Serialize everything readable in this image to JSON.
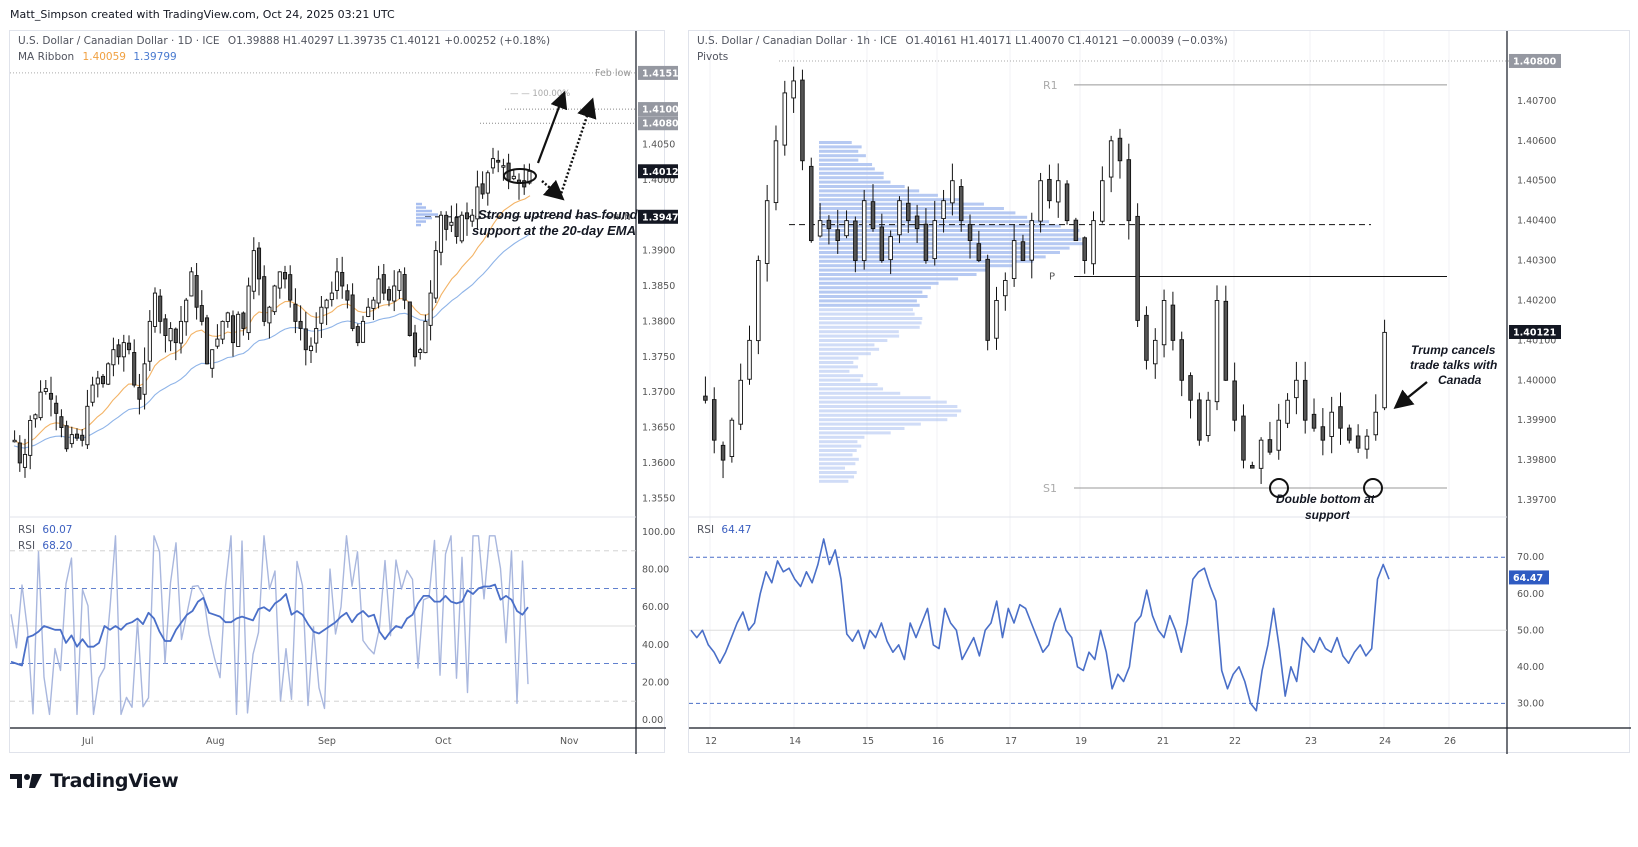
{
  "credit": "Matt_Simpson created with TradingView.com, Oct 24, 2025 03:21 UTC",
  "brand": "TradingView",
  "left_chart": {
    "title": "U.S. Dollar / Canadian Dollar · 1D · ICE",
    "ohlc": "O1.39888  H1.40297  L1.39735  C1.40121  +0.00252 (+0.18%)",
    "ma_ribbon_label": "MA Ribbon",
    "ma_fast": "1.40059",
    "ma_slow": "1.39799",
    "feb_low_label": "Feb low",
    "fib_label": "100.00%",
    "hvn_label": "HVN",
    "annotation_line1": "Strong uptrend has found",
    "annotation_line2": "support at the 20-day EMA",
    "price_ticks": [
      "1.40500",
      "1.40000",
      "1.39000",
      "1.38500",
      "1.38000",
      "1.37500",
      "1.37000",
      "1.36500",
      "1.36000",
      "1.35500"
    ],
    "price_tags": [
      {
        "label": "1.41511",
        "kind": "gray"
      },
      {
        "label": "1.41000",
        "kind": "gray"
      },
      {
        "label": "1.40800",
        "kind": "gray"
      },
      {
        "label": "1.40121",
        "kind": "black"
      },
      {
        "label": "1.39478",
        "kind": "black"
      }
    ],
    "x_ticks": [
      "Jul",
      "Aug",
      "Sep",
      "Oct",
      "Nov"
    ],
    "rsi_label": "RSI",
    "rsi_value_1": "60.07",
    "rsi_value_2": "68.20",
    "rsi_ticks": [
      "100.00",
      "80.00",
      "60.00",
      "40.00",
      "20.00",
      "0.00"
    ]
  },
  "right_chart": {
    "title": "U.S. Dollar / Canadian Dollar · 1h · ICE",
    "ohlc": "O1.40161  H1.40171  L1.40070  C1.40121  −0.00039 (−0.03%)",
    "pivots_label": "Pivots",
    "r1_label": "R1",
    "p_label": "P",
    "s1_label": "S1",
    "annotation_right_1": "Trump cancels",
    "annotation_right_2": "trade talks with",
    "annotation_right_3": "Canada",
    "annotation_bottom_1": "Double bottom at",
    "annotation_bottom_2": "support",
    "price_ticks": [
      "1.40700",
      "1.40600",
      "1.40500",
      "1.40400",
      "1.40300",
      "1.40200",
      "1.40100",
      "1.40000",
      "1.39900",
      "1.39800",
      "1.39700"
    ],
    "price_tags": [
      {
        "label": "1.40800",
        "kind": "gray"
      },
      {
        "label": "1.40121",
        "kind": "black"
      }
    ],
    "x_ticks": [
      "12",
      "14",
      "15",
      "16",
      "17",
      "19",
      "21",
      "22",
      "23",
      "24",
      "26"
    ],
    "rsi_label": "RSI",
    "rsi_value": "64.47",
    "rsi_ticks": [
      "70.00",
      "60.00",
      "50.00",
      "40.00",
      "30.00"
    ]
  },
  "colors": {
    "ma_fast": "#f0a040",
    "ma_slow": "#8fb4e8",
    "rsi_main": "#4a6fc8",
    "rsi_light": "#9aaad8",
    "volume_profile": "#a9bff0",
    "rsi_tag": "#2f5bc2"
  },
  "chart_data": [
    {
      "type": "candlestick",
      "title": "U.S. Dollar / Canadian Dollar · 1D · ICE",
      "ylim": [
        1.3525,
        1.4175
      ],
      "x_labels": [
        "Jul",
        "Aug",
        "Sep",
        "Oct",
        "Nov"
      ],
      "indicators": [
        "MA Ribbon 1.40059 / 1.39799",
        "RSI 60.07",
        "RSI 68.20"
      ],
      "levels": {
        "feb_low": 1.41511,
        "target_1": 1.41,
        "target_2": 1.408,
        "hvn": 1.39478,
        "last": 1.40121
      },
      "close_path": [
        1.3632,
        1.36,
        1.3612,
        1.366,
        1.3668,
        1.37,
        1.3705,
        1.369,
        1.367,
        1.365,
        1.362,
        1.364,
        1.3635,
        1.3632,
        1.368,
        1.371,
        1.372,
        1.3712,
        1.374,
        1.376,
        1.375,
        1.377,
        1.376,
        1.371,
        1.369,
        1.374,
        1.38,
        1.384,
        1.38,
        1.378,
        1.379,
        1.377,
        1.38,
        1.383,
        1.387,
        1.382,
        1.38,
        1.374,
        1.376,
        1.3775,
        1.38,
        1.3812,
        1.377,
        1.381,
        1.379,
        1.385,
        1.39,
        1.386,
        1.38,
        1.382,
        1.385,
        1.387,
        1.386,
        1.383,
        1.38,
        1.379,
        1.376,
        1.3765,
        1.379,
        1.382,
        1.383,
        1.384,
        1.387,
        1.385,
        1.383,
        1.379,
        1.377,
        1.38,
        1.382,
        1.383,
        1.386,
        1.384,
        1.383,
        1.385,
        1.387,
        1.383,
        1.378,
        1.375,
        1.376,
        1.38,
        1.384,
        1.39,
        1.395,
        1.393,
        1.394,
        1.392,
        1.395,
        1.3945,
        1.395,
        1.399,
        1.398,
        1.401,
        1.403,
        1.4025,
        1.402,
        1.4,
        1.4005,
        1.3995,
        1.399,
        1.4012
      ],
      "rsi_slow": [
        31,
        30,
        29,
        44,
        45,
        47,
        50,
        49,
        48,
        48,
        41,
        45,
        39,
        43,
        39,
        39,
        41,
        50,
        48,
        50,
        48,
        51,
        52,
        54,
        51,
        57,
        54,
        47,
        42,
        42,
        48,
        52,
        56,
        58,
        63,
        65,
        57,
        56,
        55,
        52,
        52,
        54,
        55,
        54,
        53,
        59,
        60,
        58,
        62,
        64,
        67,
        56,
        58,
        56,
        51,
        47,
        46,
        48,
        50,
        52,
        55,
        57,
        52,
        56,
        58,
        55,
        56,
        47,
        43,
        47,
        50,
        49,
        54,
        56,
        62,
        66,
        66,
        63,
        63,
        66,
        63,
        62,
        63,
        69,
        67,
        70,
        71,
        71,
        72,
        64,
        66,
        64,
        58,
        56,
        60
      ]
    },
    {
      "type": "candlestick",
      "title": "U.S. Dollar / Canadian Dollar · 1h · ICE",
      "ylim": [
        1.3966,
        1.4083
      ],
      "x_labels": [
        "12",
        "14",
        "15",
        "16",
        "17",
        "19",
        "21",
        "22",
        "23",
        "24",
        "26"
      ],
      "indicators": [
        "Pivots R1 1.4074 / P 1.4026 / S1 1.3973",
        "Volume profile",
        "RSI 64.47"
      ],
      "levels": {
        "R1": 1.4074,
        "P": 1.4026,
        "S1": 1.3973,
        "dashed": 1.4039,
        "last": 1.40121,
        "high": 1.408
      },
      "close_path": [
        1.3995,
        1.3985,
        1.398,
        1.399,
        1.4,
        1.401,
        1.403,
        1.4045,
        1.406,
        1.4072,
        1.4075,
        1.4055,
        1.4035,
        1.404,
        1.4038,
        1.4035,
        1.404,
        1.403,
        1.4045,
        1.4038,
        1.403,
        1.4036,
        1.4045,
        1.404,
        1.4038,
        1.403,
        1.404,
        1.4045,
        1.405,
        1.404,
        1.4035,
        1.403,
        1.401,
        1.402,
        1.4025,
        1.4035,
        1.403,
        1.404,
        1.405,
        1.4045,
        1.405,
        1.404,
        1.4035,
        1.403,
        1.404,
        1.405,
        1.406,
        1.4055,
        1.404,
        1.4015,
        1.4005,
        1.401,
        1.402,
        1.401,
        1.4,
        1.3995,
        1.3985,
        1.3995,
        1.402,
        1.4,
        1.399,
        1.398,
        1.3978,
        1.3985,
        1.3982,
        1.399,
        1.3995,
        1.4,
        1.399,
        1.3988,
        1.3985,
        1.3992,
        1.3988,
        1.3985,
        1.3983,
        1.3986,
        1.3992,
        1.4012
      ],
      "rsi": [
        50,
        48,
        50,
        46,
        44,
        41,
        44,
        48,
        52,
        55,
        50,
        52,
        60,
        66,
        63,
        69,
        66,
        67,
        64,
        62,
        66,
        63,
        68,
        75,
        68,
        72,
        64,
        49,
        47,
        50,
        45,
        50,
        48,
        52,
        47,
        44,
        46,
        42,
        52,
        48,
        52,
        56,
        46,
        45,
        56,
        52,
        50,
        42,
        45,
        48,
        43,
        50,
        52,
        58,
        48,
        56,
        52,
        57,
        56,
        52,
        48,
        44,
        46,
        52,
        56,
        50,
        48,
        40,
        39,
        44,
        42,
        50,
        44,
        34,
        38,
        36,
        40,
        52,
        54,
        61,
        54,
        50,
        48,
        54,
        50,
        44,
        52,
        64,
        66,
        67,
        62,
        58,
        39,
        34,
        38,
        40,
        36,
        30,
        28,
        39,
        46,
        56,
        45,
        32,
        40,
        36,
        48,
        46,
        44,
        48,
        45,
        44,
        48,
        43,
        41,
        44,
        46,
        43,
        45,
        64,
        68,
        64
      ]
    }
  ]
}
